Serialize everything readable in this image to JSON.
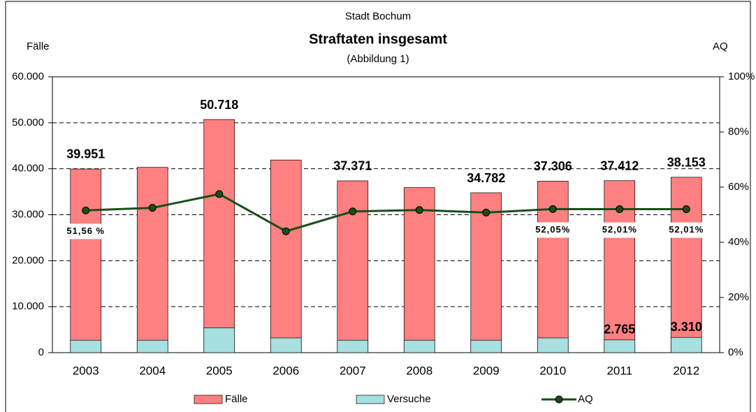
{
  "chart_data": {
    "type": "bar",
    "supertitle": "Stadt Bochum",
    "title": "Straftaten insgesamt",
    "subtitle": "(Abbildung 1)",
    "y_label": "Fälle",
    "y2_label": "AQ",
    "categories": [
      "2003",
      "2004",
      "2005",
      "2006",
      "2007",
      "2008",
      "2009",
      "2010",
      "2011",
      "2012"
    ],
    "series": [
      {
        "name": "Fälle",
        "color": "#ff8080",
        "values": [
          39951,
          40300,
          50718,
          41900,
          37371,
          35900,
          34782,
          37306,
          37412,
          38153
        ],
        "value_labels": [
          "39.951",
          null,
          "50.718",
          null,
          "37.371",
          null,
          "34.782",
          "37.306",
          "37.412",
          "38.153"
        ]
      },
      {
        "name": "Versuche",
        "color": "#a6e0e0",
        "values": [
          2700,
          2700,
          5400,
          3200,
          2700,
          2700,
          2700,
          3200,
          2765,
          3310
        ],
        "value_labels": [
          null,
          null,
          null,
          null,
          null,
          null,
          null,
          null,
          "2.765",
          "3.310"
        ]
      },
      {
        "name": "AQ",
        "color": "#1a4d1a",
        "axis": "y2",
        "type": "line",
        "values": [
          51.56,
          52.5,
          57.5,
          44,
          51.2,
          51.7,
          50.8,
          52.05,
          52.01,
          52.01
        ],
        "value_labels": [
          "51,56 %",
          null,
          null,
          null,
          null,
          null,
          null,
          "52,05%",
          "52,01%",
          "52,01%"
        ]
      }
    ],
    "ylim": [
      0,
      60000
    ],
    "yticks": [
      {
        "value": 0,
        "label": "0"
      },
      {
        "value": 10000,
        "label": "10.000"
      },
      {
        "value": 20000,
        "label": "20.000"
      },
      {
        "value": 30000,
        "label": "30.000"
      },
      {
        "value": 40000,
        "label": "40.000"
      },
      {
        "value": 50000,
        "label": "50.000"
      },
      {
        "value": 60000,
        "label": "60.000"
      }
    ],
    "y2lim": [
      0,
      100
    ],
    "y2ticks": [
      {
        "value": 0,
        "label": "0%"
      },
      {
        "value": 20,
        "label": "20%"
      },
      {
        "value": 40,
        "label": "40%"
      },
      {
        "value": 60,
        "label": "60%"
      },
      {
        "value": 80,
        "label": "80%"
      },
      {
        "value": 100,
        "label": "100%"
      }
    ],
    "grid": true,
    "legend": "bottom"
  }
}
